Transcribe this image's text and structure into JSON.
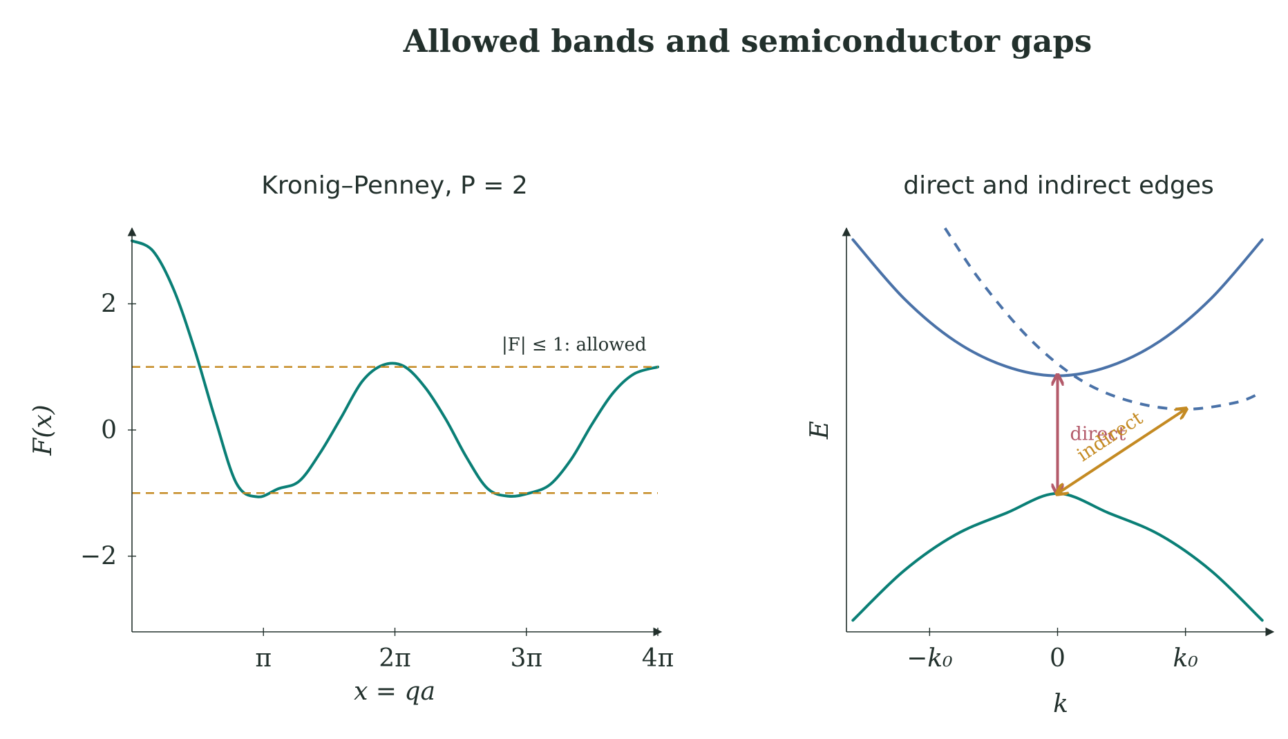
{
  "figure": {
    "title": "Allowed bands and semiconductor gaps"
  },
  "colors": {
    "ink": "#22302c",
    "teal": "#0a7f76",
    "blue": "#4a72a8",
    "gold": "#c48a22",
    "rose": "#b35a6a"
  },
  "chart_data": [
    {
      "type": "line",
      "title": "Kronig–Penney, P = 2",
      "xlabel": "x = qa",
      "ylabel": "F(x)",
      "xlim": [
        0,
        12.566
      ],
      "ylim": [
        -3.2,
        3.2
      ],
      "x_ticks": [
        {
          "value": 3.1416,
          "label": "π"
        },
        {
          "value": 6.2832,
          "label": "2π"
        },
        {
          "value": 9.4248,
          "label": "3π"
        },
        {
          "value": 12.566,
          "label": "4π"
        }
      ],
      "y_ticks": [
        {
          "value": 2,
          "label": "2"
        },
        {
          "value": 0,
          "label": "0"
        },
        {
          "value": -2,
          "label": "−2"
        }
      ],
      "grid": false,
      "series": [
        {
          "role": "curve",
          "color": "#0a7f76",
          "style": "solid",
          "x": [
            0,
            0.5,
            1.0,
            1.5,
            2.0,
            2.5,
            3.0,
            3.5,
            4.0,
            4.5,
            5.0,
            5.5,
            6.0,
            6.5,
            7.0,
            7.5,
            8.0,
            8.5,
            9.0,
            9.5,
            10.0,
            10.5,
            11.0,
            11.5,
            12.0,
            12.566
          ],
          "y": [
            3.0,
            2.84,
            2.22,
            1.27,
            0.15,
            -0.85,
            -1.06,
            -0.93,
            -0.81,
            -0.36,
            0.2,
            0.77,
            1.03,
            1.01,
            0.68,
            0.17,
            -0.44,
            -0.93,
            -1.05,
            -1.0,
            -0.86,
            -0.46,
            0.1,
            0.59,
            0.89,
            1.0
          ]
        },
        {
          "role": "upper-limit",
          "color": "#c48a22",
          "style": "dashed",
          "x": [
            0,
            12.566
          ],
          "y": [
            1,
            1
          ]
        },
        {
          "role": "lower-limit",
          "color": "#c48a22",
          "style": "dashed",
          "x": [
            0,
            12.566
          ],
          "y": [
            -1,
            -1
          ]
        }
      ],
      "annotations": [
        {
          "text": "|F| ≤ 1: allowed",
          "x": 9.0,
          "y": 1.35
        }
      ]
    },
    {
      "type": "line",
      "title": "direct and indirect edges",
      "xlabel": "k",
      "ylabel": "E",
      "xlim": [
        -1.65,
        1.65
      ],
      "ylim": [
        -1.9,
        1.6
      ],
      "x_ticks": [
        {
          "value": -1,
          "label": "−k₀"
        },
        {
          "value": 0,
          "label": "0"
        },
        {
          "value": 1,
          "label": "k₀"
        }
      ],
      "y_ticks": [],
      "grid": false,
      "series": [
        {
          "role": "conduction-band-direct",
          "color": "#4a72a8",
          "style": "solid",
          "x": [
            -1.6,
            -1.2,
            -0.8,
            -0.4,
            0,
            0.4,
            0.8,
            1.2,
            1.6
          ],
          "y": [
            1.5,
            0.99,
            0.62,
            0.4,
            0.32,
            0.4,
            0.62,
            0.99,
            1.5
          ]
        },
        {
          "role": "conduction-band-indirect",
          "color": "#4a72a8",
          "style": "dashed",
          "x": [
            -0.88,
            -0.6,
            -0.2,
            0.2,
            0.6,
            1.0,
            1.4,
            1.6
          ],
          "y": [
            1.6,
            1.14,
            0.62,
            0.27,
            0.09,
            0.03,
            0.09,
            0.18
          ]
        },
        {
          "role": "valence-band",
          "color": "#0a7f76",
          "style": "solid",
          "x": [
            -1.6,
            -1.2,
            -0.8,
            -0.4,
            0,
            0.4,
            0.8,
            1.2,
            1.6
          ],
          "y": [
            -1.8,
            -1.37,
            -1.06,
            -0.87,
            -0.7,
            -0.87,
            -1.06,
            -1.37,
            -1.8
          ]
        }
      ],
      "arrows": [
        {
          "label": "direct",
          "color": "#b35a6a",
          "from": [
            0,
            -0.7
          ],
          "to": [
            0,
            0.32
          ],
          "double": true
        },
        {
          "label": "indirect",
          "color": "#c48a22",
          "from": [
            0,
            -0.7
          ],
          "to": [
            1.0,
            0.03
          ],
          "double": true
        }
      ]
    }
  ]
}
